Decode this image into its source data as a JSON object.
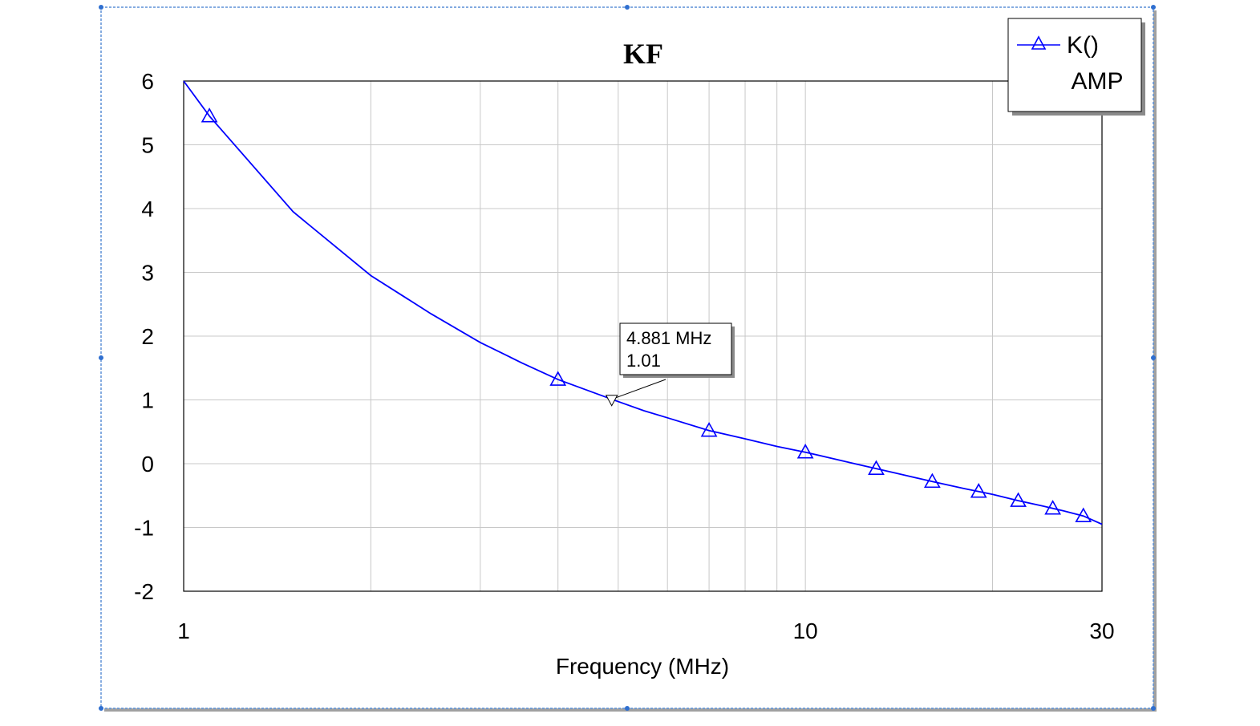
{
  "chart_data": {
    "type": "line",
    "title": "KF",
    "xlabel": "Frequency (MHz)",
    "ylabel": "",
    "x_scale": "log",
    "xlim": [
      1,
      30
    ],
    "ylim": [
      -2,
      6
    ],
    "x_ticks": [
      "1",
      "10",
      "30"
    ],
    "y_ticks": [
      "6",
      "5",
      "4",
      "3",
      "2",
      "1",
      "0",
      "-1",
      "-2"
    ],
    "grid": true,
    "legend_position": "top-right",
    "series": [
      {
        "name": "K()",
        "subtitle": "AMP",
        "color": "#0000ff",
        "marker": "triangle",
        "x": [
          1.0,
          1.1,
          1.5,
          2.0,
          2.5,
          3.0,
          3.5,
          4.0,
          4.881,
          5.5,
          6.0,
          7.0,
          8.0,
          9.0,
          10.0,
          12.0,
          14.0,
          16.0,
          18.0,
          20.0,
          22.0,
          24.0,
          26.0,
          28.0,
          30.0
        ],
        "y": [
          6.0,
          5.45,
          3.95,
          2.95,
          2.35,
          1.9,
          1.58,
          1.32,
          1.01,
          0.83,
          0.72,
          0.52,
          0.39,
          0.27,
          0.18,
          0.0,
          -0.15,
          -0.28,
          -0.39,
          -0.48,
          -0.58,
          -0.66,
          -0.74,
          -0.82,
          -0.95
        ],
        "marker_x": [
          1.1,
          4.0,
          7.0,
          10.0,
          13.0,
          16.0,
          19.0,
          22.0,
          25.0,
          28.0
        ]
      }
    ],
    "annotations": [
      {
        "x": 4.881,
        "y": 1.01,
        "line1": "4.881 MHz",
        "line2": "1.01"
      }
    ]
  }
}
